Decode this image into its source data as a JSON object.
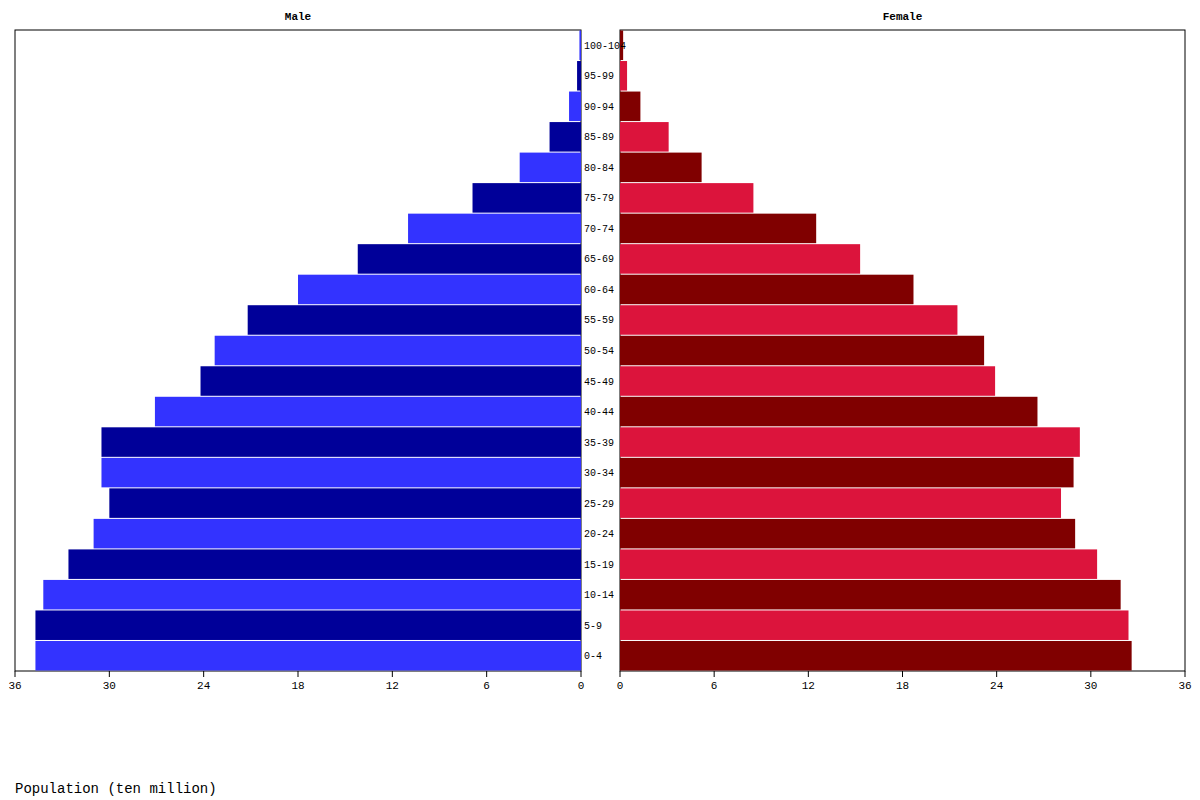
{
  "chart_data": {
    "type": "pyramid",
    "orientation": "horizontal",
    "xlabel": "Population (ten million)",
    "categories": [
      "0-4",
      "5-9",
      "10-14",
      "15-19",
      "20-24",
      "25-29",
      "30-34",
      "35-39",
      "40-44",
      "45-49",
      "50-54",
      "55-59",
      "60-64",
      "65-69",
      "70-74",
      "75-79",
      "80-84",
      "85-89",
      "90-94",
      "95-99",
      "100-104"
    ],
    "xlim": [
      0,
      36
    ],
    "xticks": [
      0,
      6,
      12,
      18,
      24,
      30,
      36
    ],
    "series": [
      {
        "name": "Male",
        "colors": [
          "#3333ff",
          "#000099",
          "#3333ff",
          "#000099",
          "#3333ff",
          "#000099",
          "#3333ff",
          "#000099",
          "#3333ff",
          "#000099",
          "#3333ff",
          "#000099",
          "#3333ff",
          "#000099",
          "#3333ff",
          "#000099",
          "#3333ff",
          "#000099",
          "#3333ff",
          "#000099",
          "#3333ff"
        ],
        "values": [
          34.7,
          34.7,
          34.2,
          32.6,
          31.0,
          30.0,
          30.5,
          30.5,
          27.1,
          24.2,
          23.3,
          21.2,
          18.0,
          14.2,
          11.0,
          6.9,
          3.9,
          2.0,
          0.76,
          0.25,
          0.1
        ]
      },
      {
        "name": "Female",
        "colors": [
          "#800000",
          "#dc143c",
          "#800000",
          "#dc143c",
          "#800000",
          "#dc143c",
          "#800000",
          "#dc143c",
          "#800000",
          "#dc143c",
          "#800000",
          "#dc143c",
          "#800000",
          "#dc143c",
          "#800000",
          "#dc143c",
          "#800000",
          "#dc143c",
          "#800000",
          "#dc143c",
          "#800000"
        ],
        "values": [
          32.6,
          32.4,
          31.9,
          30.4,
          29.0,
          28.1,
          28.9,
          29.3,
          26.6,
          23.9,
          23.2,
          21.5,
          18.7,
          15.3,
          12.5,
          8.5,
          5.2,
          3.1,
          1.3,
          0.45,
          0.2
        ]
      }
    ]
  }
}
